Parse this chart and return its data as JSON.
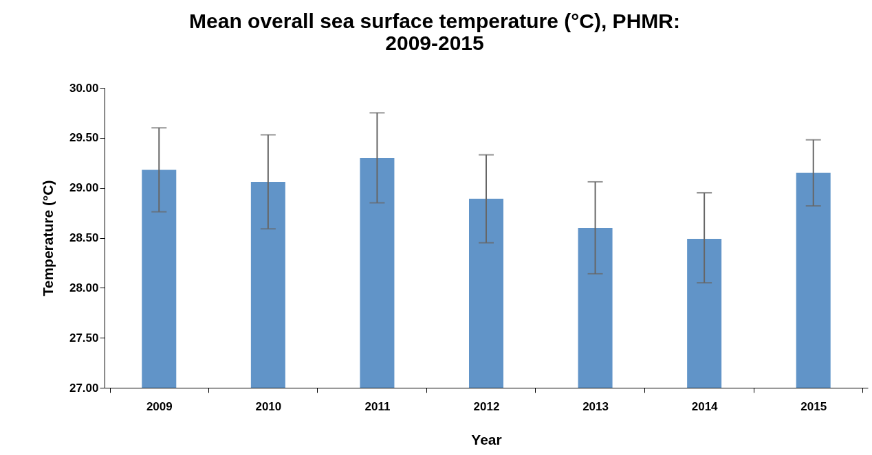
{
  "chart_data": {
    "type": "bar",
    "title": [
      "Mean overall sea surface temperature (°C), PHMR:",
      "2009-2015"
    ],
    "xlabel": "Year",
    "ylabel": "Temperature (°C)",
    "categories": [
      "2009",
      "2010",
      "2011",
      "2012",
      "2013",
      "2014",
      "2015"
    ],
    "values": [
      29.18,
      29.06,
      29.3,
      28.89,
      28.6,
      28.49,
      29.15
    ],
    "errors": [
      [
        28.76,
        29.6
      ],
      [
        28.59,
        29.53
      ],
      [
        28.85,
        29.75
      ],
      [
        28.45,
        29.33
      ],
      [
        28.14,
        29.06
      ],
      [
        28.05,
        28.95
      ],
      [
        28.82,
        29.48
      ]
    ],
    "color": "#6194c8",
    "ylim": [
      27,
      30
    ],
    "yticks": [
      {
        "value": 27,
        "label": "27.00"
      },
      {
        "value": 27.5,
        "label": "27.50"
      },
      {
        "value": 28,
        "label": "28.00"
      },
      {
        "value": 28.5,
        "label": "28.50"
      },
      {
        "value": 29,
        "label": "29.00"
      },
      {
        "value": 29.5,
        "label": "29.50"
      },
      {
        "value": 30,
        "label": "30.00"
      }
    ],
    "grid": false
  }
}
